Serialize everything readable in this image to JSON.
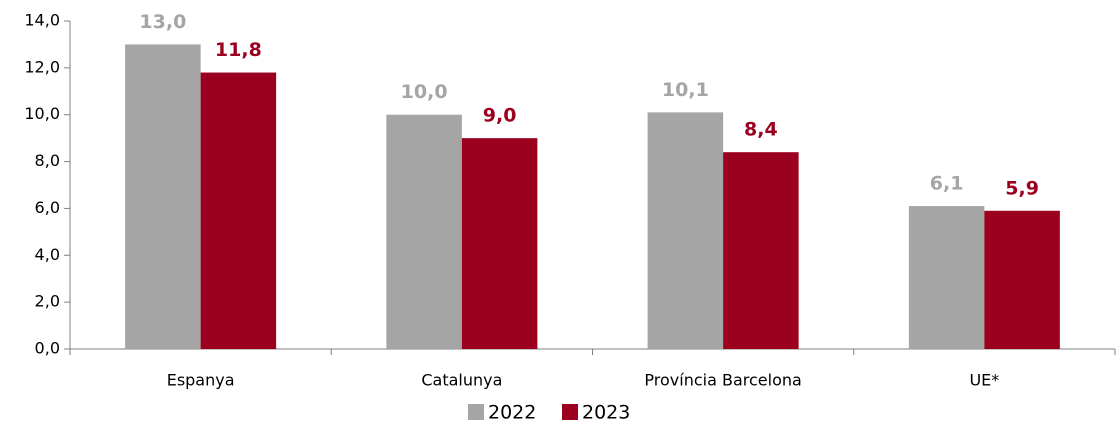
{
  "chart_data": {
    "type": "bar",
    "categories": [
      "Espanya",
      "Catalunya",
      "Província Barcelona",
      "UE*"
    ],
    "series": [
      {
        "name": "2022",
        "color": "#a5a5a5",
        "values": [
          13.0,
          10.0,
          10.1,
          6.1
        ],
        "value_labels": [
          "13,0",
          "10,0",
          "10,1",
          "6,1"
        ]
      },
      {
        "name": "2023",
        "color": "#9b001f",
        "values": [
          11.8,
          9.0,
          8.4,
          5.9
        ],
        "value_labels": [
          "11,8",
          "9,0",
          "8,4",
          "5,9"
        ]
      }
    ],
    "ylim": [
      0,
      14
    ],
    "yticks": [
      {
        "value": 0,
        "label": "0,0"
      },
      {
        "value": 2,
        "label": "2,0"
      },
      {
        "value": 4,
        "label": "4,0"
      },
      {
        "value": 6,
        "label": "6,0"
      },
      {
        "value": 8,
        "label": "8,0"
      },
      {
        "value": 10,
        "label": "10,0"
      },
      {
        "value": 12,
        "label": "12,0"
      },
      {
        "value": 14,
        "label": "14,0"
      }
    ],
    "grid": false,
    "legend": "bottom"
  }
}
